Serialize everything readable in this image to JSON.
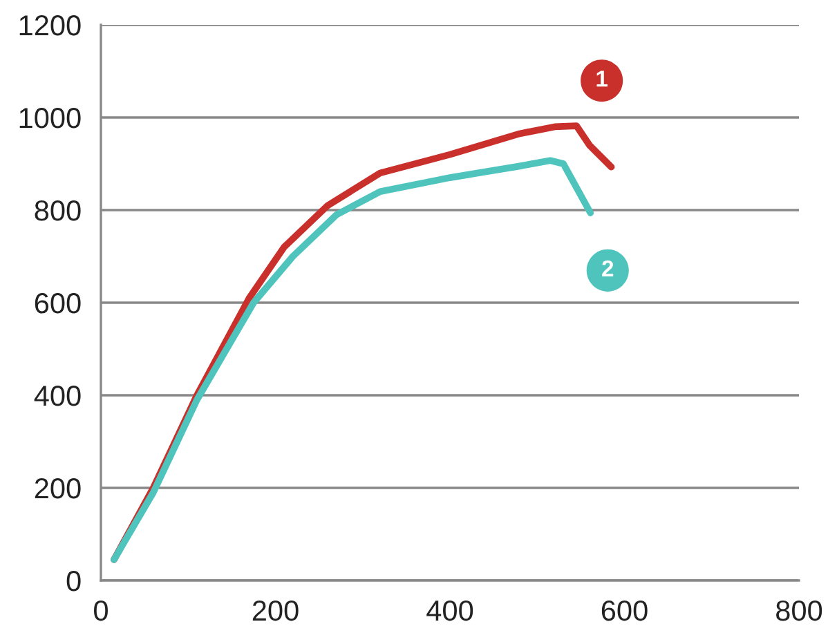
{
  "chart_data": {
    "type": "line",
    "xlim": [
      0,
      800
    ],
    "xticks": [
      0,
      200,
      400,
      600,
      800
    ],
    "ylim": [
      0,
      1200
    ],
    "yticks": [
      0,
      200,
      400,
      600,
      800,
      1000,
      1200
    ],
    "grid": "y",
    "legend": false,
    "marker": "none",
    "line_style": "solid",
    "series": [
      {
        "name": "1",
        "color": "#c9302c",
        "x": [
          15,
          60,
          110,
          170,
          210,
          260,
          320,
          400,
          480,
          520,
          545,
          560,
          585
        ],
        "values": [
          45,
          200,
          400,
          610,
          720,
          810,
          880,
          920,
          965,
          980,
          982,
          940,
          893
        ]
      },
      {
        "name": "2",
        "color": "#4fc4bd",
        "x": [
          15,
          60,
          110,
          175,
          220,
          270,
          320,
          400,
          480,
          515,
          530,
          561
        ],
        "values": [
          45,
          190,
          390,
          600,
          700,
          790,
          840,
          870,
          895,
          907,
          900,
          794
        ]
      }
    ]
  }
}
